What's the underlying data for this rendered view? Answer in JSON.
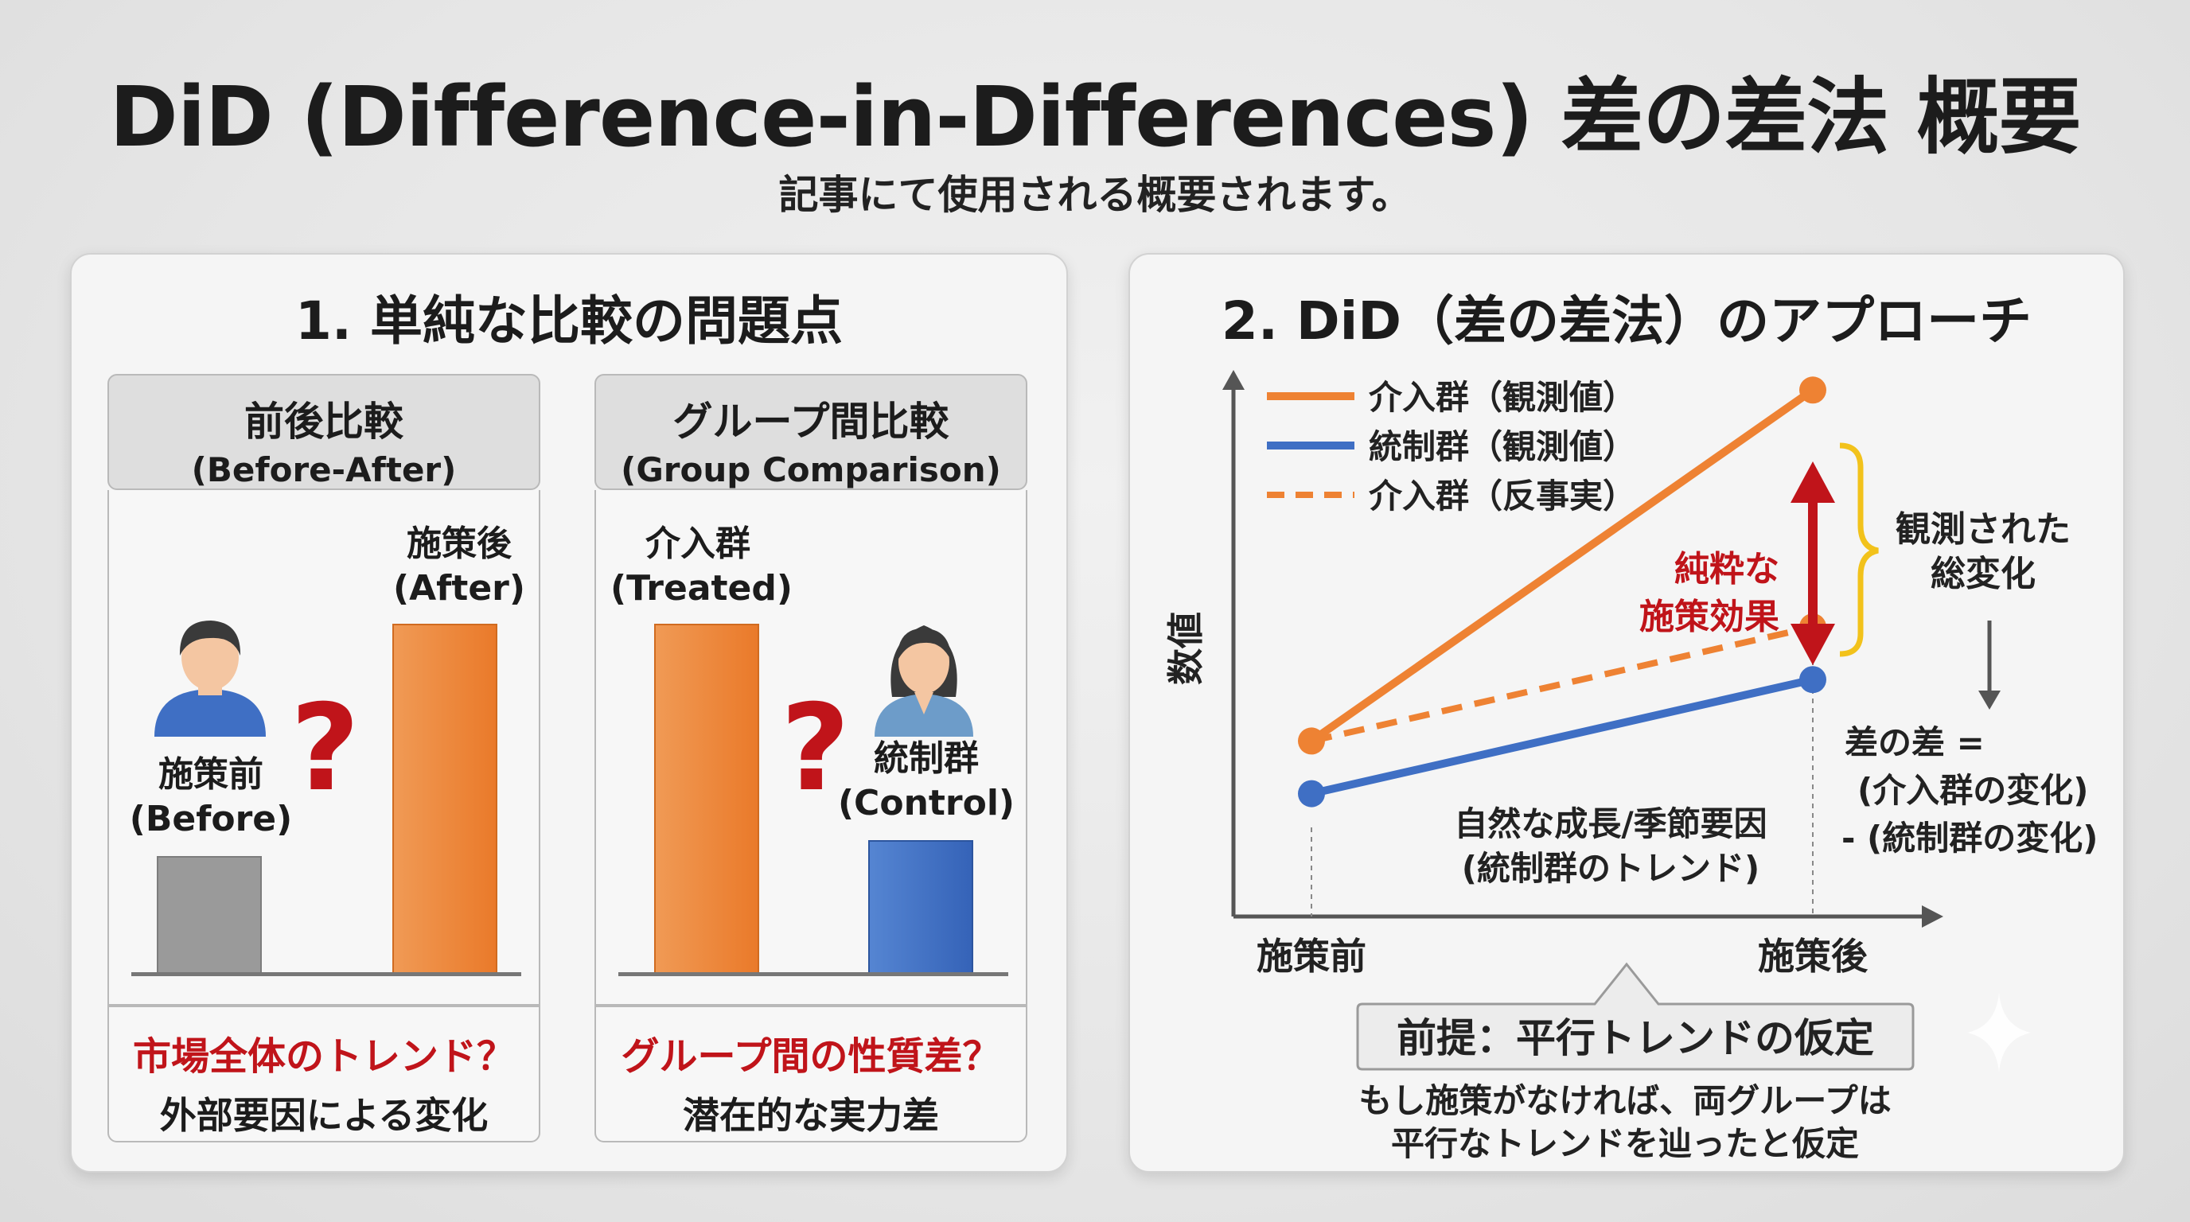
{
  "title": "DiD (Difference-in-Differences) 差の差法 概要",
  "subtitle": "記事にて使用される概要されます。",
  "left_panel": {
    "title": "1. 単純な比較の問題点",
    "before_after": {
      "header_jp": "前後比較",
      "header_en": "(Before-After)",
      "before_jp": "施策前",
      "before_en": "(Before)",
      "after_jp": "施策後",
      "after_en": "(After)",
      "question_mark": "?",
      "issue": "市場全体のトレンド？",
      "reason": "外部要因による変化"
    },
    "group_comparison": {
      "header_jp": "グループ間比較",
      "header_en": "(Group Comparison)",
      "treated_jp": "介入群",
      "treated_en": "(Treated)",
      "control_jp": "統制群",
      "control_en": "(Control)",
      "question_mark": "?",
      "issue": "グループ間の性質差？",
      "reason": "潜在的な実力差"
    }
  },
  "right_panel": {
    "title": "2. DiD（差の差法）のアプローチ",
    "ylabel": "数値",
    "legend": [
      "介入群（観測値）",
      "統制群（観測値）",
      "介入群（反事実）"
    ],
    "x_ticks": [
      "施策前",
      "施策後"
    ],
    "effect_label_1": "純粋な",
    "effect_label_2": "施策効果",
    "total_change_1": "観測された",
    "total_change_2": "総変化",
    "diff_formula_1": "差の差 =",
    "diff_formula_2": "(介入群の変化)",
    "diff_formula_3": "- (統制群の変化)",
    "trend_label_1": "自然な成長/季節要因",
    "trend_label_2": "(統制群のトレンド)",
    "assumption_title": "前提：平行トレンドの仮定",
    "assumption_text_1": "もし施策がなければ、両グループは",
    "assumption_text_2": "平行なトレンドを辿ったと仮定"
  },
  "colors": {
    "treated": "#ee8233",
    "control": "#3f6fc4",
    "effect_arrow": "#c0141a",
    "brace": "#f2c21b",
    "neutral_bar": "#9a9a9a"
  },
  "chart_data": {
    "type": "line",
    "x": [
      "施策前",
      "施策後"
    ],
    "series": [
      {
        "name": "介入群（観測値）",
        "values": [
          2.0,
          6.0
        ],
        "style": "solid",
        "color": "#ee8233"
      },
      {
        "name": "統制群（観測値）",
        "values": [
          1.4,
          2.7
        ],
        "style": "solid",
        "color": "#3f6fc4"
      },
      {
        "name": "介入群（反事実）",
        "values": [
          2.0,
          3.3
        ],
        "style": "dashed",
        "color": "#ee8233"
      }
    ],
    "ylabel": "数値",
    "ylim": [
      0,
      7
    ],
    "grid": false,
    "legend_position": "top-left"
  }
}
